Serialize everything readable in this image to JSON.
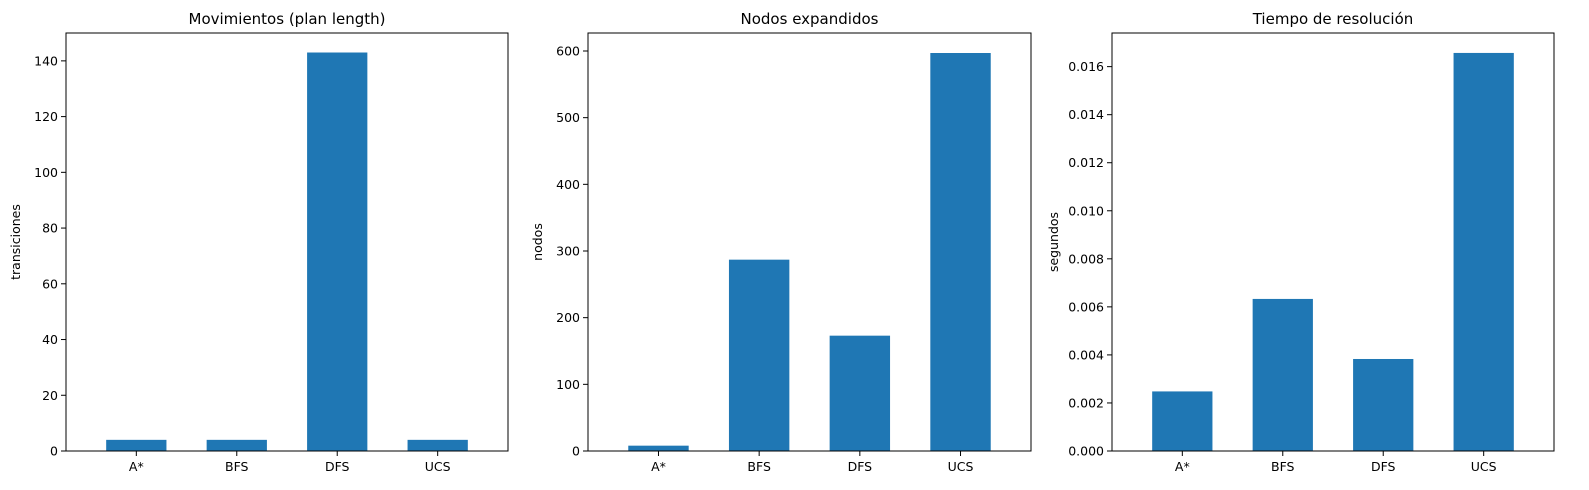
{
  "chart_data": [
    {
      "type": "bar",
      "title": "Movimientos (plan length)",
      "xlabel": "",
      "ylabel": "transiciones",
      "categories": [
        "A*",
        "BFS",
        "DFS",
        "UCS"
      ],
      "values": [
        4,
        4,
        143,
        4
      ],
      "ylim": [
        0,
        150
      ],
      "yticks": [
        0,
        20,
        40,
        60,
        80,
        100,
        120,
        140
      ],
      "ytick_labels": [
        "0",
        "20",
        "40",
        "60",
        "80",
        "100",
        "120",
        "140"
      ],
      "grid": false,
      "color": "#1f77b4"
    },
    {
      "type": "bar",
      "title": "Nodos expandidos",
      "xlabel": "",
      "ylabel": "nodos",
      "categories": [
        "A*",
        "BFS",
        "DFS",
        "UCS"
      ],
      "values": [
        8,
        287,
        173,
        597
      ],
      "ylim": [
        0,
        627
      ],
      "yticks": [
        0,
        100,
        200,
        300,
        400,
        500,
        600
      ],
      "ytick_labels": [
        "0",
        "100",
        "200",
        "300",
        "400",
        "500",
        "600"
      ],
      "grid": false,
      "color": "#1f77b4"
    },
    {
      "type": "bar",
      "title": "Tiempo de resolución",
      "xlabel": "",
      "ylabel": "segundos",
      "categories": [
        "A*",
        "BFS",
        "DFS",
        "UCS"
      ],
      "values": [
        0.00248,
        0.00633,
        0.00383,
        0.01657
      ],
      "ylim": [
        0,
        0.0174
      ],
      "yticks": [
        0,
        0.002,
        0.004,
        0.006,
        0.008,
        0.01,
        0.012,
        0.014,
        0.016
      ],
      "ytick_labels": [
        "0.000",
        "0.002",
        "0.004",
        "0.006",
        "0.008",
        "0.010",
        "0.012",
        "0.014",
        "0.016"
      ],
      "grid": false,
      "color": "#1f77b4"
    }
  ]
}
